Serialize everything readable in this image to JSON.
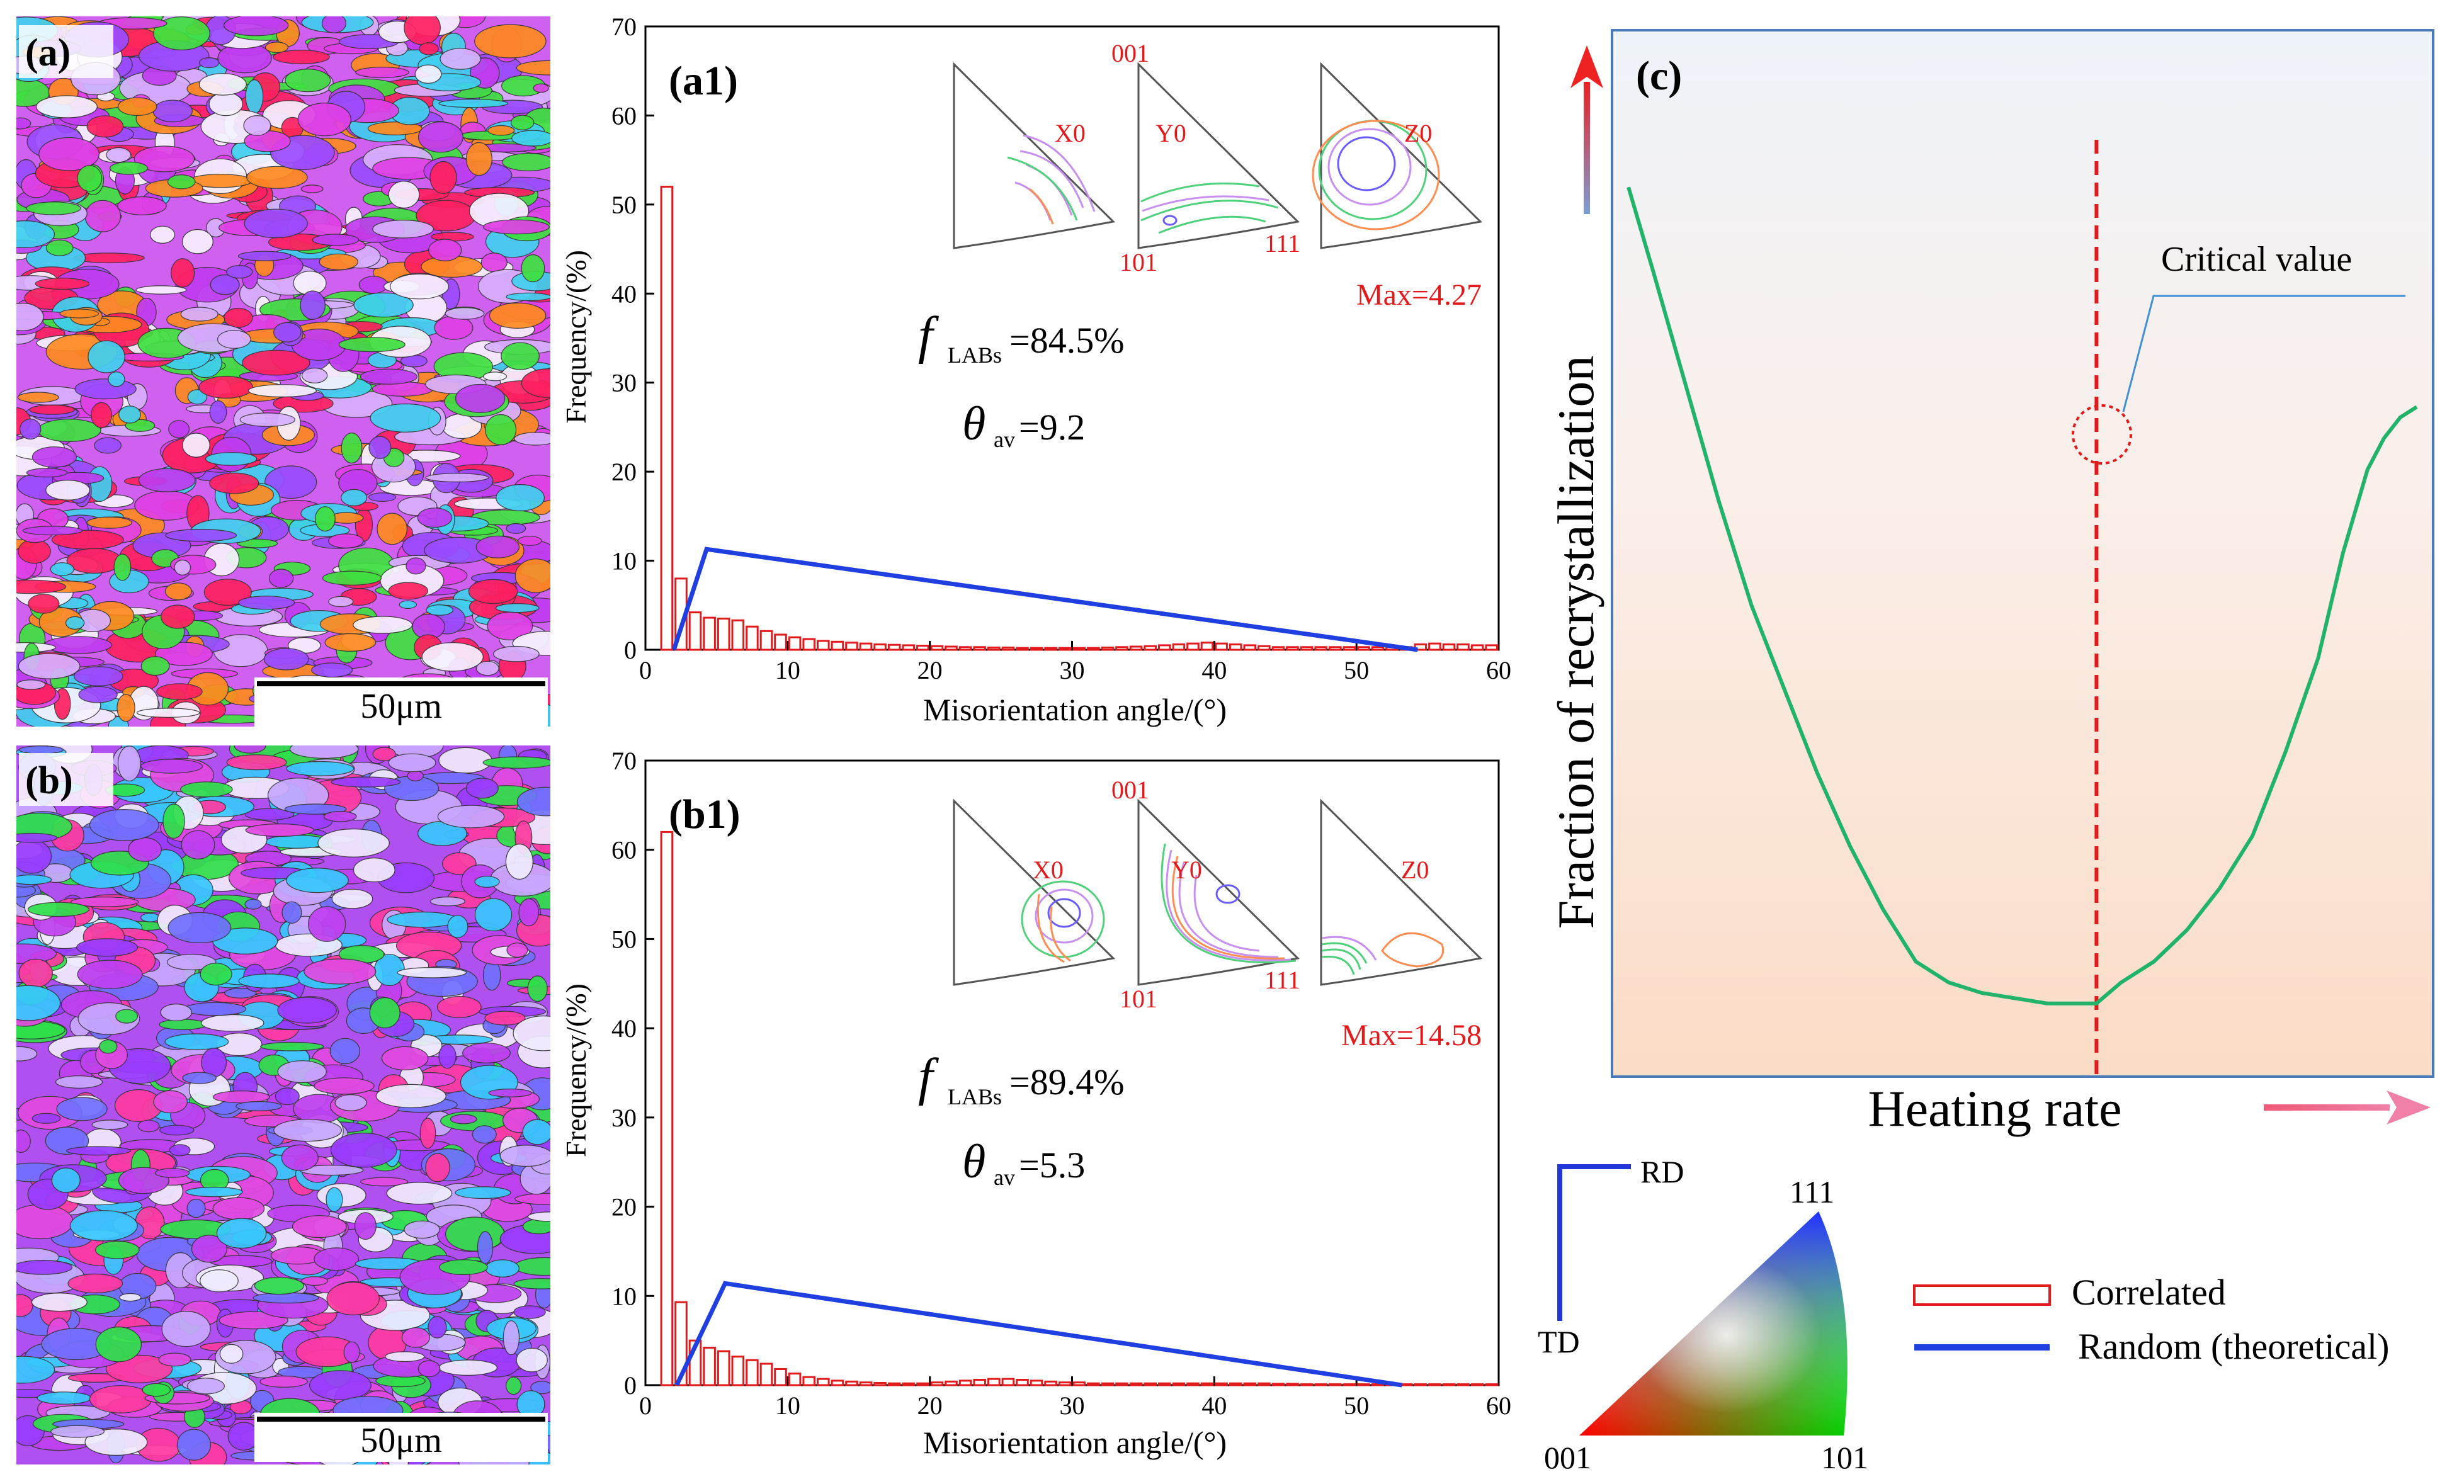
{
  "figure": {
    "colors": {
      "red": "#e31a1c",
      "blue": "#1f3fe0",
      "green": "#22b36a",
      "panel_border": "#4a7ab8"
    }
  },
  "panel_a": {
    "label": "(a)",
    "scalebar": "50μm",
    "map_type": "EBSD IPF orientation map",
    "palette": [
      "#e040e6",
      "#c03cf0",
      "#9a4cff",
      "#3fe040",
      "#40d0f0",
      "#f7f2ff",
      "#ff2060",
      "#ff8a20",
      "#d8b0ff"
    ]
  },
  "panel_b": {
    "label": "(b)",
    "scalebar": "50μm",
    "map_type": "EBSD IPF orientation map",
    "palette": [
      "#c040f0",
      "#9a3cff",
      "#e24ae0",
      "#2fe04a",
      "#38c8ff",
      "#f0ecff",
      "#ff3aa0",
      "#7070ff",
      "#c8a8ff"
    ]
  },
  "chart_data": [
    {
      "type": "bar",
      "panel": "(a1)",
      "xlabel": "Misorientation angle/(°)",
      "ylabel": "Frequency/(%)",
      "xlim": [
        0,
        60
      ],
      "ylim": [
        0,
        70
      ],
      "xticks": [
        0,
        10,
        20,
        30,
        40,
        50,
        60
      ],
      "yticks": [
        0,
        10,
        20,
        30,
        40,
        50,
        60,
        70
      ],
      "series": [
        {
          "name": "Correlated",
          "style": "bars-outline",
          "color": "#e31a1c",
          "x": [
            1.5,
            2.5,
            3.5,
            4.5,
            5.5,
            6.5,
            7.5,
            8.5,
            9.5,
            10.5,
            11.5,
            12.5,
            13.5,
            14.5,
            15.5,
            16.5,
            17.5,
            18.5,
            19.5,
            20.5,
            21.5,
            22.5,
            23.5,
            24.5,
            25.5,
            26.5,
            27.5,
            28.5,
            29.5,
            30.5,
            31.5,
            32.5,
            33.5,
            34.5,
            35.5,
            36.5,
            37.5,
            38.5,
            39.5,
            40.5,
            41.5,
            42.5,
            43.5,
            44.5,
            45.5,
            46.5,
            47.5,
            48.5,
            49.5,
            50.5,
            51.5,
            52.5,
            53.5,
            54.5,
            55.5,
            56.5,
            57.5,
            58.5,
            59.5
          ],
          "values": [
            52,
            8,
            4.2,
            3.6,
            3.5,
            3.3,
            2.6,
            2.1,
            1.7,
            1.4,
            1.2,
            1.0,
            0.9,
            0.8,
            0.7,
            0.6,
            0.55,
            0.5,
            0.45,
            0.4,
            0.35,
            0.3,
            0.3,
            0.25,
            0.25,
            0.2,
            0.2,
            0.2,
            0.2,
            0.2,
            0.2,
            0.25,
            0.3,
            0.35,
            0.4,
            0.5,
            0.6,
            0.7,
            0.8,
            0.7,
            0.6,
            0.5,
            0.4,
            0.3,
            0.3,
            0.3,
            0.3,
            0.3,
            0.3,
            0.3,
            0.3,
            0.3,
            0.3,
            0.6,
            0.7,
            0.6,
            0.6,
            0.5,
            0.5
          ]
        },
        {
          "name": "Random (theoretical)",
          "style": "line",
          "color": "#1f3fe0",
          "x": [
            2,
            4.3,
            54.3
          ],
          "values": [
            0,
            11.3,
            0
          ]
        }
      ],
      "annotations": {
        "f_symbol": "f",
        "f_sub": "LABs",
        "f_value": "=84.5%",
        "theta_symbol": "θ",
        "theta_sub": "av",
        "theta_value": "=9.2",
        "max_label": "Max=4.27"
      },
      "ipf_insets": {
        "labels": [
          "X0",
          "Y0",
          "Z0"
        ],
        "pole_001": "001",
        "pole_101": "101",
        "pole_111": "111"
      }
    },
    {
      "type": "bar",
      "panel": "(b1)",
      "xlabel": "Misorientation angle/(°)",
      "ylabel": "Frequency/(%)",
      "xlim": [
        0,
        60
      ],
      "ylim": [
        0,
        70
      ],
      "xticks": [
        0,
        10,
        20,
        30,
        40,
        50,
        60
      ],
      "yticks": [
        0,
        10,
        20,
        30,
        40,
        50,
        60,
        70
      ],
      "series": [
        {
          "name": "Correlated",
          "style": "bars-outline",
          "color": "#e31a1c",
          "x": [
            1.5,
            2.5,
            3.5,
            4.5,
            5.5,
            6.5,
            7.5,
            8.5,
            9.5,
            10.5,
            11.5,
            12.5,
            13.5,
            14.5,
            15.5,
            16.5,
            17.5,
            18.5,
            19.5,
            20.5,
            21.5,
            22.5,
            23.5,
            24.5,
            25.5,
            26.5,
            27.5,
            28.5,
            29.5,
            30.5,
            31.5,
            32.5,
            33.5,
            34.5,
            35.5,
            36.5,
            37.5,
            38.5,
            39.5,
            40.5,
            41.5,
            42.5,
            43.5,
            44.5,
            45.5,
            46.5,
            47.5,
            48.5,
            49.5,
            50.5,
            51.5,
            52.5,
            53.5,
            54.5,
            55.5,
            56.5,
            57.5,
            58.5,
            59.5
          ],
          "values": [
            62,
            9.3,
            5.0,
            4.2,
            3.8,
            3.2,
            2.8,
            2.4,
            1.8,
            1.3,
            0.9,
            0.7,
            0.5,
            0.4,
            0.3,
            0.25,
            0.2,
            0.2,
            0.2,
            0.3,
            0.4,
            0.5,
            0.6,
            0.7,
            0.7,
            0.6,
            0.5,
            0.4,
            0.3,
            0.3,
            0.2,
            0.2,
            0.2,
            0.2,
            0.2,
            0.2,
            0.2,
            0.2,
            0.2,
            0.2,
            0.2,
            0.2,
            0.2,
            0.15,
            0.15,
            0.1,
            0.1,
            0.1,
            0.1,
            0.1,
            0.1,
            0.1,
            0.1,
            0.1,
            0.1,
            0.1,
            0.1,
            0.1,
            0.1
          ]
        },
        {
          "name": "Random (theoretical)",
          "style": "line",
          "color": "#1f3fe0",
          "x": [
            2.2,
            5.6,
            53.2
          ],
          "values": [
            0,
            11.4,
            0
          ]
        }
      ],
      "annotations": {
        "f_symbol": "f",
        "f_sub": "LABs",
        "f_value": "=89.4%",
        "theta_symbol": "θ",
        "theta_sub": "av",
        "theta_value": "=5.3",
        "max_label": "Max=14.58"
      },
      "ipf_insets": {
        "labels": [
          "X0",
          "Y0",
          "Z0"
        ],
        "pole_001": "001",
        "pole_101": "101",
        "pole_111": "111"
      }
    },
    {
      "type": "line",
      "panel": "(c)",
      "xlabel": "Heating rate",
      "ylabel": "Fraction of recrystallization",
      "axis_numbers": "none",
      "critical_value_label": "Critical value",
      "critical_x": 0.59,
      "series": [
        {
          "name": "",
          "color": "#22b36a",
          "x": [
            0.02,
            0.05,
            0.09,
            0.13,
            0.17,
            0.21,
            0.25,
            0.29,
            0.33,
            0.37,
            0.41,
            0.45,
            0.49,
            0.53,
            0.57,
            0.59,
            0.62,
            0.66,
            0.7,
            0.74,
            0.78,
            0.82,
            0.86,
            0.89,
            0.92,
            0.94,
            0.96,
            0.98
          ],
          "values": [
            0.85,
            0.77,
            0.66,
            0.55,
            0.45,
            0.37,
            0.29,
            0.22,
            0.16,
            0.11,
            0.09,
            0.08,
            0.075,
            0.07,
            0.07,
            0.07,
            0.09,
            0.11,
            0.14,
            0.18,
            0.23,
            0.31,
            0.4,
            0.5,
            0.58,
            0.61,
            0.63,
            0.64
          ]
        }
      ]
    }
  ],
  "legend": {
    "items": [
      {
        "label": "Correlated",
        "style": "bar",
        "color": "#e31a1c"
      },
      {
        "label": "Random (theoretical)",
        "style": "line",
        "color": "#1f3fe0"
      }
    ]
  },
  "ipf_key": {
    "pole_001": "001",
    "pole_101": "101",
    "pole_111": "111",
    "axis_rd": "RD",
    "axis_td": "TD"
  }
}
